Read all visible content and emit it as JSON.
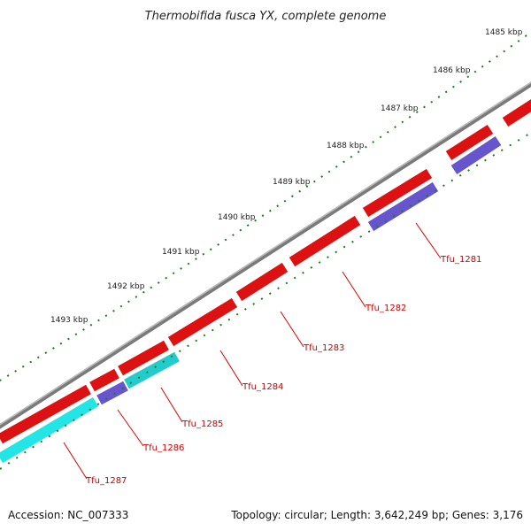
{
  "title": "Thermobifida fusca YX, complete genome",
  "footer": {
    "accession": "Accession: NC_007333",
    "summary": "Topology: circular; Length: 3,642,249 bp; Genes: 3,176"
  },
  "kbp_labels": [
    "1485 kbp",
    "1486 kbp",
    "1487 kbp",
    "1488 kbp",
    "1489 kbp",
    "1490 kbp",
    "1491 kbp",
    "1492 kbp",
    "1493 kbp"
  ],
  "gene_labels": [
    "Tfu_1281",
    "Tfu_1282",
    "Tfu_1283",
    "Tfu_1284",
    "Tfu_1285",
    "Tfu_1286",
    "Tfu_1287"
  ],
  "colors": {
    "backbone": "#7a7a7a",
    "cds_forward": "#ee1111",
    "cds_reverse_cyan": "#11eeee",
    "cds_reverse_purple": "#6655cc",
    "ticks": "#227722",
    "gene_label": "#cc0000",
    "leader": "#dd0000"
  }
}
